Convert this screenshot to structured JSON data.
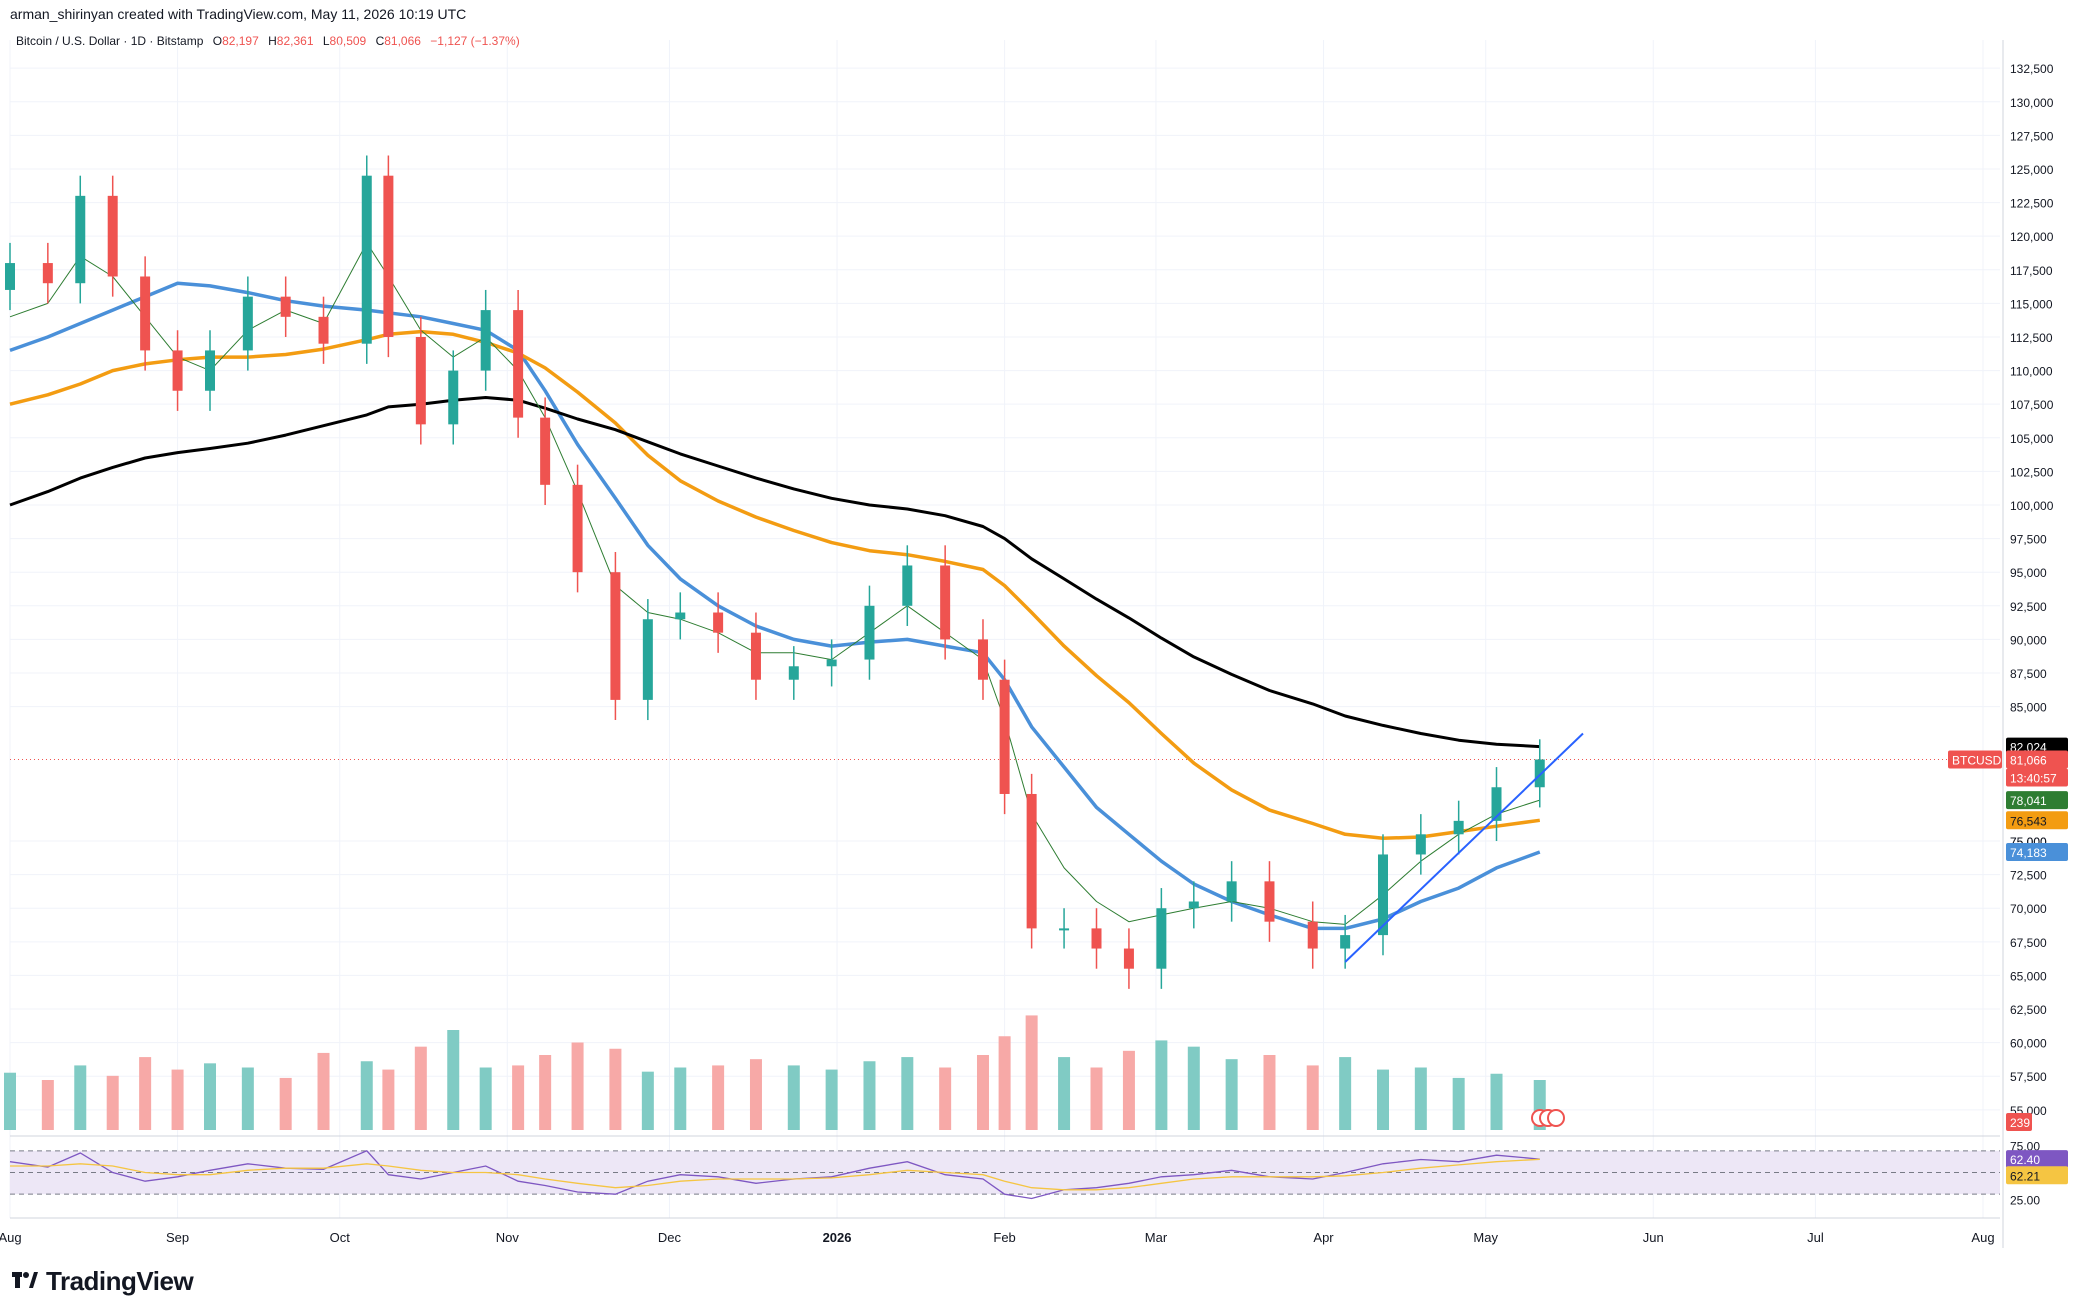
{
  "header": {
    "credit": "arman_shirinyan created with TradingView.com, May 11, 2026 10:19 UTC"
  },
  "legend": {
    "symbol": "Bitcoin / U.S. Dollar · 1D · Bitstamp",
    "o_label": "O",
    "o_value": "82,197",
    "h_label": "H",
    "h_value": "82,361",
    "l_label": "L",
    "l_value": "80,509",
    "c_label": "C",
    "c_value": "81,066",
    "change": "−1,127 (−1.37%)"
  },
  "footer": {
    "brand": "TradingView"
  },
  "colors": {
    "up": "#26a69a",
    "down": "#ef5350",
    "ma_blue": "#4a90d9",
    "ma_orange": "#f39c12",
    "ma_black": "#000000",
    "ma_green": "#2e7d32",
    "rsi": "#7e57c2",
    "rsi_ma": "#f5c542"
  },
  "chart_data": [
    {
      "type": "line",
      "title": "Bitcoin / U.S. Dollar · 1D · Bitstamp",
      "x_tick_labels": [
        "Aug",
        "Sep",
        "Oct",
        "Nov",
        "Dec",
        "2026",
        "Feb",
        "Mar",
        "Apr",
        "May",
        "Jun",
        "Jul",
        "Aug"
      ],
      "y_tick_labels": [
        "132,500",
        "130,000",
        "127,500",
        "125,000",
        "122,500",
        "120,000",
        "117,500",
        "115,000",
        "112,500",
        "110,000",
        "107,500",
        "105,000",
        "102,500",
        "100,000",
        "97,500",
        "95,000",
        "92,500",
        "90,000",
        "87,500",
        "85,000",
        "75,000",
        "72,500",
        "70,000",
        "67,500",
        "65,000",
        "62,500",
        "60,000",
        "57,500",
        "55,000"
      ],
      "ylim": [
        53500,
        134000
      ],
      "grid": true,
      "x": [
        "2025-08-01",
        "2025-08-08",
        "2025-08-14",
        "2025-08-20",
        "2025-08-26",
        "2025-09-01",
        "2025-09-07",
        "2025-09-14",
        "2025-09-21",
        "2025-09-28",
        "2025-10-06",
        "2025-10-10",
        "2025-10-16",
        "2025-10-22",
        "2025-10-28",
        "2025-11-03",
        "2025-11-08",
        "2025-11-14",
        "2025-11-21",
        "2025-11-27",
        "2025-12-03",
        "2025-12-10",
        "2025-12-17",
        "2025-12-24",
        "2025-12-31",
        "2026-01-07",
        "2026-01-14",
        "2026-01-21",
        "2026-01-28",
        "2026-02-01",
        "2026-02-06",
        "2026-02-12",
        "2026-02-18",
        "2026-02-24",
        "2026-03-02",
        "2026-03-08",
        "2026-03-15",
        "2026-03-22",
        "2026-03-30",
        "2026-04-05",
        "2026-04-12",
        "2026-04-19",
        "2026-04-26",
        "2026-05-03",
        "2026-05-11"
      ],
      "series": [
        {
          "name": "BTCUSD",
          "values": [
            118000,
            116500,
            123000,
            117000,
            111500,
            108500,
            111500,
            115500,
            114000,
            112000,
            124500,
            112500,
            106000,
            110000,
            114500,
            106500,
            101500,
            95000,
            85500,
            91500,
            92000,
            90500,
            87000,
            88000,
            88500,
            92500,
            95500,
            90000,
            87000,
            78500,
            68500,
            68500,
            67000,
            65500,
            70000,
            70500,
            72000,
            69000,
            67000,
            68000,
            74000,
            75500,
            76500,
            79000,
            81066
          ]
        },
        {
          "values": [
            111500,
            112500,
            113500,
            114500,
            115500,
            116500,
            116300,
            115800,
            115200,
            114800,
            114500,
            114300,
            114000,
            113500,
            113000,
            111500,
            108500,
            104500,
            100500,
            97000,
            94500,
            92500,
            91000,
            90000,
            89500,
            89800,
            90000,
            89500,
            89000,
            87000,
            83500,
            80500,
            77500,
            75500,
            73500,
            71800,
            70500,
            69500,
            68500,
            68500,
            69200,
            70500,
            71500,
            73000,
            74183
          ]
        },
        {
          "values": [
            107500,
            108200,
            109000,
            110000,
            110500,
            110800,
            111000,
            111000,
            111200,
            111600,
            112300,
            112700,
            112900,
            112700,
            112100,
            111300,
            110200,
            108400,
            106100,
            103700,
            101800,
            100300,
            99100,
            98100,
            97200,
            96600,
            96300,
            95800,
            95200,
            94000,
            92000,
            89500,
            87300,
            85300,
            83000,
            80800,
            78800,
            77300,
            76300,
            75500,
            75200,
            75300,
            75700,
            76100,
            76543
          ]
        },
        {
          "values": [
            100000,
            101000,
            102000,
            102800,
            103500,
            103900,
            104200,
            104600,
            105200,
            105900,
            106700,
            107300,
            107500,
            107800,
            108000,
            107800,
            107200,
            106400,
            105600,
            104700,
            103800,
            102900,
            102000,
            101200,
            100500,
            100000,
            99700,
            99200,
            98400,
            97500,
            96000,
            94500,
            93000,
            91600,
            90100,
            88700,
            87400,
            86200,
            85200,
            84300,
            83600,
            83000,
            82500,
            82200,
            82024
          ]
        },
        {
          "values": [
            114000,
            115000,
            118500,
            117000,
            114000,
            111000,
            110000,
            113000,
            114500,
            113500,
            119500,
            117000,
            113000,
            111000,
            112500,
            110000,
            106500,
            101000,
            94000,
            92000,
            91500,
            90500,
            89000,
            89000,
            88500,
            90500,
            92500,
            90500,
            88500,
            84000,
            77000,
            73000,
            70500,
            69000,
            69500,
            70000,
            70500,
            70000,
            69000,
            68800,
            71000,
            73500,
            75500,
            77000,
            78041
          ]
        }
      ],
      "series_labels": [
        "BTCUSD",
        "82,024",
        "81,066",
        "13:40:57",
        "78,041",
        "76,543",
        "75,000",
        "74,183"
      ],
      "annotations": [
        "ascending trendline from early Apr 2026 (~66,000) to mid May 2026 (~83,000)"
      ]
    },
    {
      "type": "bar",
      "values_level_label": "239",
      "note": "daily volume histogram, colored by candle direction",
      "values": [
        55,
        48,
        62,
        52,
        70,
        58,
        64,
        60,
        50,
        74,
        66,
        58,
        80,
        96,
        60,
        62,
        72,
        84,
        78,
        56,
        60,
        62,
        68,
        62,
        58,
        66,
        70,
        60,
        72,
        90,
        110,
        70,
        60,
        76,
        86,
        80,
        68,
        72,
        62,
        70,
        58,
        60,
        50,
        54,
        48
      ]
    },
    {
      "type": "line",
      "title": "",
      "y_tick_labels": [
        "75.00",
        "25.00"
      ],
      "ylim": [
        20,
        80
      ],
      "levels": [
        70,
        50,
        30
      ],
      "series": [
        {
          "name": "",
          "values": [
            60,
            55,
            68,
            50,
            42,
            46,
            52,
            58,
            54,
            53,
            70,
            48,
            44,
            50,
            56,
            42,
            38,
            32,
            30,
            42,
            48,
            46,
            40,
            44,
            46,
            54,
            60,
            48,
            44,
            30,
            26,
            34,
            36,
            40,
            46,
            48,
            52,
            46,
            44,
            50,
            58,
            62,
            60,
            66,
            62.4
          ]
        },
        {
          "name": "",
          "values": [
            56,
            56,
            58,
            56,
            50,
            48,
            48,
            52,
            54,
            54,
            58,
            56,
            52,
            50,
            50,
            48,
            44,
            40,
            36,
            38,
            42,
            44,
            44,
            44,
            45,
            48,
            52,
            50,
            48,
            42,
            36,
            34,
            34,
            36,
            40,
            44,
            46,
            46,
            46,
            47,
            50,
            54,
            57,
            60,
            62.21
          ]
        }
      ],
      "series_labels": [
        "62.40",
        "62.21"
      ]
    }
  ]
}
